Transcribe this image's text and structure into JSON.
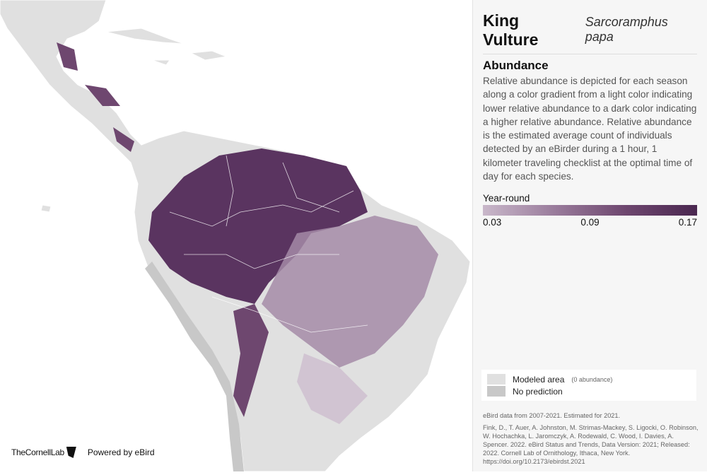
{
  "species": {
    "common_name": "King Vulture",
    "scientific_name": "Sarcoramphus papa"
  },
  "abundance": {
    "heading": "Abundance",
    "description": "Relative abundance is depicted for each season along a color gradient from a light color indicating lower relative abundance to a dark color indicating a higher relative abundance. Relative abundance is the estimated average count of individuals detected by an eBirder during a 1 hour, 1 kilometer traveling checklist at the optimal time of day for each species."
  },
  "scale": {
    "season": "Year-round",
    "ticks": [
      "0.03",
      "0.09",
      "0.17"
    ],
    "colors": [
      "#c9b8ca",
      "#4a2750"
    ]
  },
  "legend": {
    "modeled": "Modeled area",
    "modeled_note": "(0 abundance)",
    "no_prediction": "No prediction",
    "modeled_color": "#e0e0e0",
    "no_prediction_color": "#c8c8c8"
  },
  "citation": {
    "data_note": "eBird data from 2007-2021. Estimated for 2021.",
    "reference": "Fink, D., T. Auer, A. Johnston, M. Strimas-Mackey, S. Ligocki, O. Robinson, W. Hochachka, L. Jaromczyk, A. Rodewald, C. Wood, I. Davies, A. Spencer. 2022. eBird Status and Trends, Data Version: 2021; Released: 2022. Cornell Lab of Ornithology, Ithaca, New York. https://doi.org/10.2173/ebirdst.2021"
  },
  "logos": {
    "cornell": "TheCornellLab",
    "powered": "Powered by eBird"
  }
}
